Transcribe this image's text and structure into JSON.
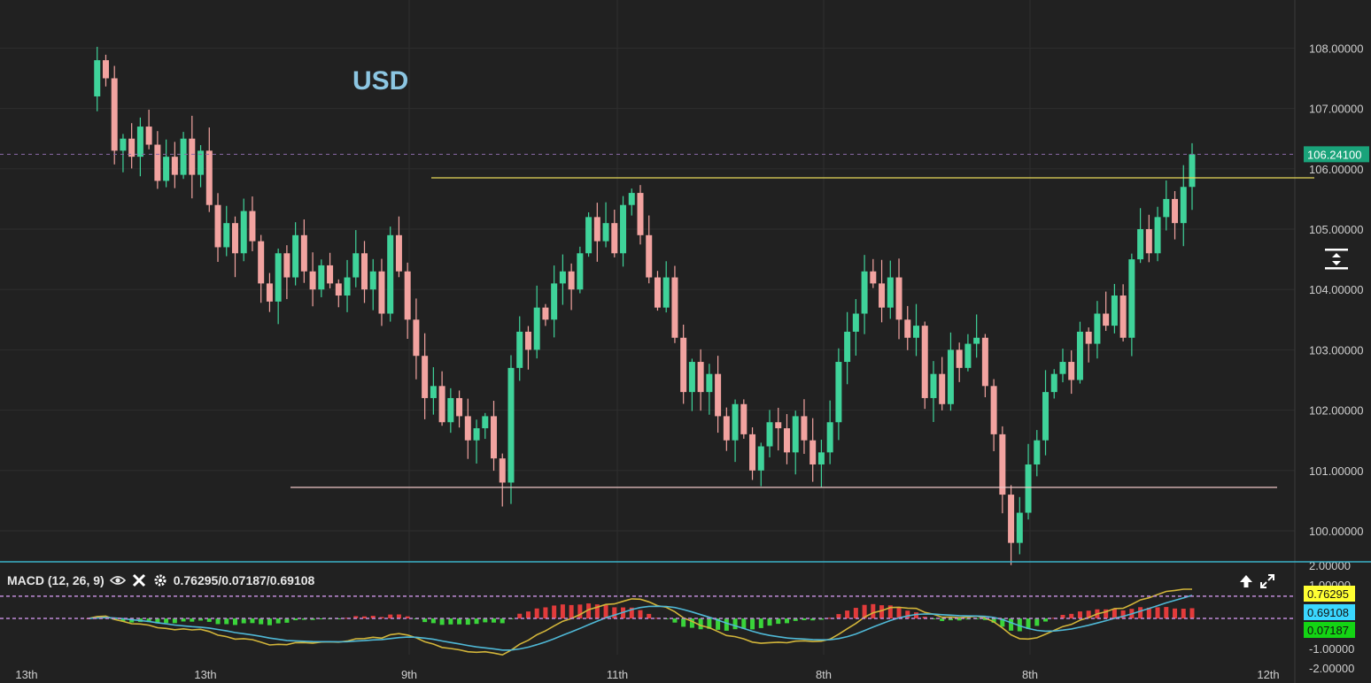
{
  "watermark": "USD",
  "colors": {
    "background": "#212121",
    "grid": "#2e2e2e",
    "bull": "#3fd39a",
    "bear": "#f2a3a0",
    "resistance": "#e6d85a",
    "support": "#f0c7c7",
    "last_price_tag": "#1aa37a",
    "macd_line": "#4fb8d6",
    "signal_line": "#d2b53a",
    "hist_pos": "#e23b3b",
    "hist_neg": "#3ad43a",
    "pane_divider": "#3ab3c9",
    "level_dash": "#c08bd8"
  },
  "macd": {
    "label": "MACD (12, 26, 9)",
    "values_text": "0.76295/0.07187/0.69108",
    "tags": [
      {
        "text": "0.76295",
        "value": 0.76295,
        "color": "#ffff33"
      },
      {
        "text": "0.69108",
        "value": 0.69108,
        "color": "#3ad7ff"
      },
      {
        "text": "0.07187",
        "value": 0.07187,
        "color": "#14d414"
      }
    ],
    "axis_labels": [
      "2.00000",
      "1.00000",
      "-1.00000",
      "-2.00000"
    ]
  },
  "icons": {
    "eye": "eye-icon",
    "close": "close-icon",
    "settings": "gear-icon",
    "arrow_up": "arrow-up-icon",
    "expand": "expand-icon",
    "zoom": "vertical-zoom-icon"
  },
  "chart_data": {
    "type": "candlestick",
    "title": "",
    "ylim": [
      99.6,
      108.8
    ],
    "y_ticks": [
      "108.00000",
      "107.00000",
      "106.00000",
      "105.00000",
      "104.00000",
      "103.00000",
      "102.00000",
      "101.00000",
      "100.00000"
    ],
    "y_tick_values": [
      108,
      107,
      106,
      105,
      104,
      103,
      102,
      101,
      100
    ],
    "x_tick_labels": [
      "13th",
      "13th",
      "9th",
      "11th",
      "8th",
      "8th",
      "12th"
    ],
    "last_price": {
      "text": "106.24100",
      "value": 106.241
    },
    "resistance": 105.85,
    "support": 100.72,
    "path": [
      107.2,
      107.8,
      107.5,
      106.3,
      106.5,
      106.2,
      106.7,
      106.4,
      105.8,
      106.2,
      105.9,
      106.5,
      105.9,
      106.3,
      105.4,
      104.7,
      105.1,
      104.6,
      105.3,
      104.8,
      104.1,
      103.8,
      104.6,
      104.2,
      104.9,
      104.3,
      104.0,
      104.4,
      104.1,
      103.9,
      104.2,
      104.6,
      104.0,
      104.3,
      103.6,
      104.9,
      104.3,
      103.5,
      102.9,
      102.2,
      102.4,
      101.8,
      102.2,
      101.9,
      101.5,
      101.7,
      101.9,
      101.2,
      100.8,
      102.7,
      103.3,
      103.0,
      103.7,
      103.5,
      104.1,
      104.3,
      104.0,
      104.6,
      105.2,
      104.8,
      105.1,
      104.6,
      105.4,
      105.6,
      104.9,
      104.2,
      103.7,
      104.2,
      103.2,
      102.3,
      102.8,
      102.3,
      102.6,
      101.9,
      101.5,
      102.1,
      101.6,
      101.0,
      101.4,
      101.8,
      101.7,
      101.3,
      101.9,
      101.5,
      101.1,
      101.3,
      101.8,
      102.8,
      103.3,
      103.6,
      104.3,
      104.1,
      103.7,
      104.2,
      103.5,
      103.2,
      103.4,
      102.2,
      102.6,
      102.1,
      103.0,
      102.7,
      103.1,
      103.2,
      102.4,
      101.6,
      100.6,
      99.8,
      100.3,
      101.1,
      101.5,
      102.3,
      102.6,
      102.8,
      102.5,
      103.3,
      103.1,
      103.6,
      103.4,
      103.9,
      103.2,
      104.5,
      105.0,
      104.6,
      105.2,
      105.5,
      105.1,
      105.7,
      106.24
    ]
  }
}
